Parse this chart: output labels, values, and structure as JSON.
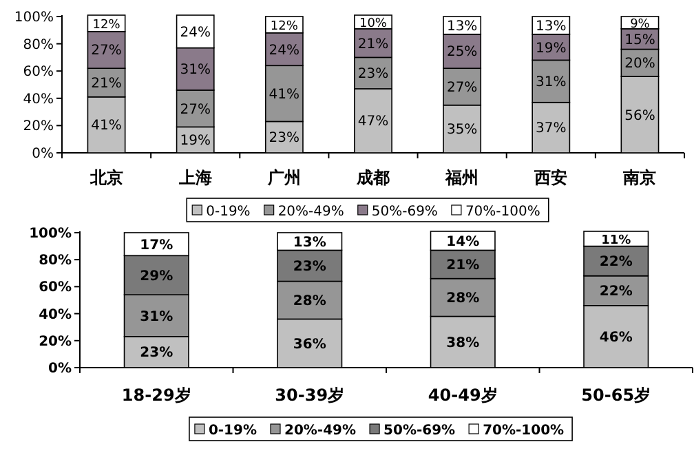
{
  "chart_data": [
    {
      "type": "bar",
      "stacked": true,
      "legend": "bottom",
      "categories": [
        "北京",
        "上海",
        "广州",
        "成都",
        "福州",
        "西安",
        "南京"
      ],
      "ylim": [
        0,
        101
      ],
      "yticks": [
        {
          "value": 0,
          "label": "0%"
        },
        {
          "value": 20,
          "label": "20%"
        },
        {
          "value": 40,
          "label": "40%"
        },
        {
          "value": 60,
          "label": "60%"
        },
        {
          "value": 80,
          "label": "80%"
        },
        {
          "value": 100,
          "label": "100%"
        }
      ],
      "series": [
        {
          "name": "0-19%",
          "color": "#c0c0c0",
          "values": [
            41,
            19,
            23,
            47,
            35,
            37,
            56
          ],
          "value_labels": [
            "41%",
            "19%",
            "23%",
            "47%",
            "35%",
            "37%",
            "56%"
          ]
        },
        {
          "name": "20%-49%",
          "color": "#969696",
          "values": [
            21,
            27,
            41,
            23,
            27,
            31,
            20
          ],
          "value_labels": [
            "21%",
            "27%",
            "41%",
            "23%",
            "27%",
            "31%",
            "20%"
          ]
        },
        {
          "name": "50%-69%",
          "color": "#8a7a8a",
          "values": [
            27,
            31,
            24,
            21,
            25,
            19,
            15
          ],
          "value_labels": [
            "27%",
            "31%",
            "24%",
            "21%",
            "25%",
            "19%",
            "15%"
          ]
        },
        {
          "name": "70%-100%",
          "color": "#ffffff",
          "values": [
            12,
            24,
            12,
            10,
            13,
            13,
            9
          ],
          "value_labels": [
            "12%",
            "24%",
            "12%",
            "10%",
            "13%",
            "13%",
            "9%"
          ]
        }
      ]
    },
    {
      "type": "bar",
      "stacked": true,
      "legend": "bottom",
      "categories": [
        "18-29岁",
        "30-39岁",
        "40-49岁",
        "50-65岁"
      ],
      "ylim": [
        0,
        101
      ],
      "yticks": [
        {
          "value": 0,
          "label": "0%"
        },
        {
          "value": 20,
          "label": "20%"
        },
        {
          "value": 40,
          "label": "40%"
        },
        {
          "value": 60,
          "label": "60%"
        },
        {
          "value": 80,
          "label": "80%"
        },
        {
          "value": 100,
          "label": "100%"
        }
      ],
      "series": [
        {
          "name": "0-19%",
          "color": "#c0c0c0",
          "values": [
            23,
            36,
            38,
            46
          ],
          "value_labels": [
            "23%",
            "36%",
            "38%",
            "46%"
          ]
        },
        {
          "name": "20%-49%",
          "color": "#969696",
          "values": [
            31,
            28,
            28,
            22
          ],
          "value_labels": [
            "31%",
            "28%",
            "28%",
            "22%"
          ]
        },
        {
          "name": "50%-69%",
          "color": "#7a7a7a",
          "values": [
            29,
            23,
            21,
            22
          ],
          "value_labels": [
            "29%",
            "23%",
            "21%",
            "22%"
          ]
        },
        {
          "name": "70%-100%",
          "color": "#ffffff",
          "values": [
            17,
            13,
            14,
            11
          ],
          "value_labels": [
            "17%",
            "13%",
            "14%",
            "11%"
          ]
        }
      ]
    }
  ]
}
